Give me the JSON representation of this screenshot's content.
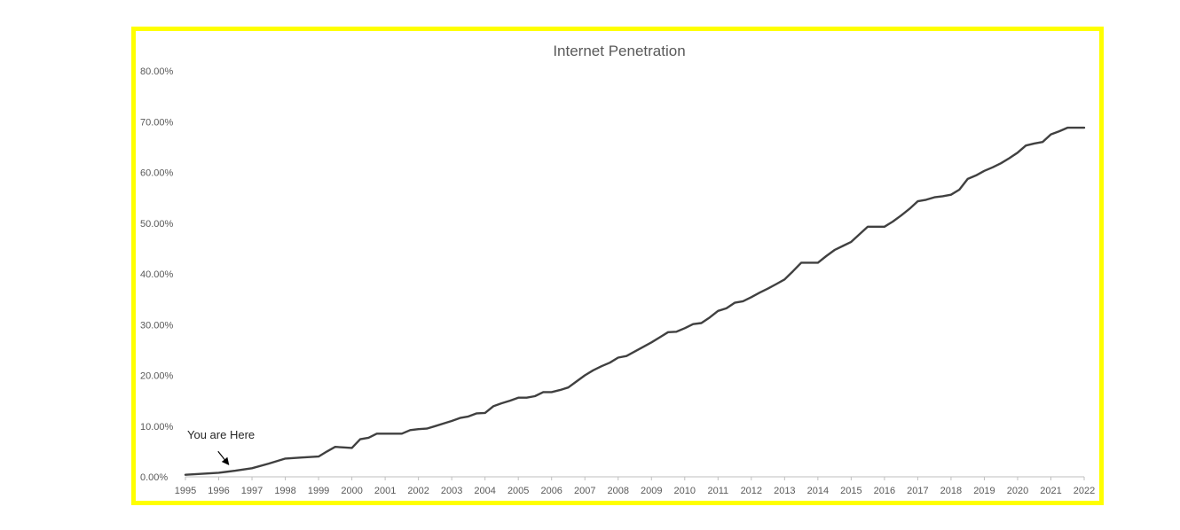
{
  "colors": {
    "border": "#ffff00",
    "line": "#404040",
    "text": "#595959",
    "axis": "#bfbfbf"
  },
  "chart_data": {
    "type": "line",
    "title": "Internet Penetration",
    "xlabel": "",
    "ylabel": "",
    "grid": false,
    "legend": "none",
    "ylim": [
      0,
      80
    ],
    "xlim": [
      1995,
      2022
    ],
    "y_tick_labels": [
      "0.00%",
      "10.00%",
      "20.00%",
      "30.00%",
      "40.00%",
      "50.00%",
      "60.00%",
      "70.00%",
      "80.00%"
    ],
    "x_tick_labels": [
      "1995",
      "1996",
      "1997",
      "1998",
      "1999",
      "2000",
      "2001",
      "2002",
      "2003",
      "2004",
      "2005",
      "2006",
      "2007",
      "2008",
      "2009",
      "2010",
      "2011",
      "2012",
      "2013",
      "2014",
      "2015",
      "2016",
      "2017",
      "2018",
      "2019",
      "2020",
      "2021",
      "2022"
    ],
    "series": [
      {
        "x": [
          1995,
          1995.5,
          1996,
          1996.5,
          1997,
          1997.5,
          1998,
          1998.5,
          1999,
          1999.25,
          1999.5,
          1999.75,
          2000,
          2000.25,
          2000.5,
          2000.75,
          2001,
          2001.25,
          2001.5,
          2001.75,
          2002,
          2002.25,
          2002.5,
          2002.75,
          2003,
          2003.25,
          2003.5,
          2003.75,
          2004,
          2004.25,
          2004.5,
          2004.75,
          2005,
          2005.25,
          2005.5,
          2005.75,
          2006,
          2006.25,
          2006.5,
          2006.75,
          2007,
          2007.25,
          2007.5,
          2007.75,
          2008,
          2008.25,
          2008.5,
          2008.75,
          2009,
          2009.25,
          2009.5,
          2009.75,
          2010,
          2010.25,
          2010.5,
          2010.75,
          2011,
          2011.25,
          2011.5,
          2011.75,
          2012,
          2012.25,
          2012.5,
          2012.75,
          2013,
          2013.25,
          2013.5,
          2013.75,
          2014,
          2014.25,
          2014.5,
          2014.75,
          2015,
          2015.25,
          2015.5,
          2015.75,
          2016,
          2016.25,
          2016.5,
          2016.75,
          2017,
          2017.25,
          2017.5,
          2017.75,
          2018,
          2018.25,
          2018.5,
          2018.75,
          2019,
          2019.25,
          2019.5,
          2019.75,
          2020,
          2020.25,
          2020.5,
          2020.75,
          2021,
          2021.25,
          2021.5,
          2021.75,
          2022
        ],
        "values": [
          0.4,
          0.6,
          0.8,
          1.2,
          1.7,
          2.6,
          3.6,
          3.8,
          4.0,
          5.0,
          5.9,
          5.8,
          5.7,
          7.4,
          7.7,
          8.5,
          8.5,
          8.5,
          8.5,
          9.2,
          9.4,
          9.5,
          10.0,
          10.5,
          11.0,
          11.6,
          11.9,
          12.5,
          12.6,
          13.9,
          14.5,
          15.0,
          15.6,
          15.6,
          15.9,
          16.7,
          16.7,
          17.1,
          17.6,
          18.8,
          20.0,
          21.0,
          21.8,
          22.5,
          23.5,
          23.8,
          24.7,
          25.6,
          26.5,
          27.5,
          28.5,
          28.6,
          29.3,
          30.1,
          30.3,
          31.4,
          32.7,
          33.2,
          34.3,
          34.6,
          35.4,
          36.3,
          37.1,
          38.0,
          38.9,
          40.5,
          42.2,
          42.2,
          42.2,
          43.5,
          44.7,
          45.5,
          46.3,
          47.8,
          49.3,
          49.3,
          49.3,
          50.3,
          51.5,
          52.8,
          54.3,
          54.6,
          55.1,
          55.3,
          55.6,
          56.6,
          58.7,
          59.4,
          60.3,
          61.0,
          61.8,
          62.8,
          63.9,
          65.3,
          65.7,
          66.0,
          67.5,
          68.1,
          68.8,
          68.8,
          68.8
        ]
      }
    ],
    "annotations": [
      {
        "text": "You are Here",
        "x": 1996.3,
        "y": 1.0
      }
    ]
  }
}
